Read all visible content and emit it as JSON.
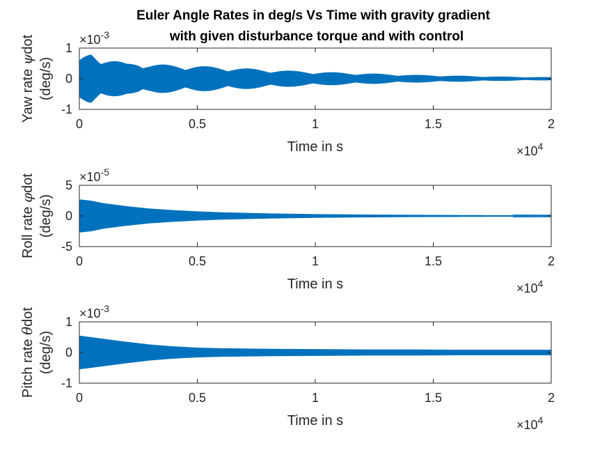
{
  "figure": {
    "title_line1": "Euler Angle Rates in deg/s Vs Time with gravity gradient",
    "title_line2": "with given disturbance torque and with control"
  },
  "colors": {
    "series": "#0072BD",
    "axes": "#262626"
  },
  "chart_data": [
    {
      "type": "line",
      "ylabel_line1": "Yaw rate ",
      "ylabel_symbol": "ψ",
      "ylabel_suffix": "dot",
      "ylabel_line2": "(deg/s)",
      "xlabel": "Time in s",
      "xlim": [
        0,
        20000
      ],
      "ylim": [
        -0.001,
        0.001
      ],
      "xticks": [
        "0",
        "0.5",
        "1",
        "1.5",
        "2"
      ],
      "yticks": [
        "-1",
        "0",
        "1"
      ],
      "x_multiplier": "×10",
      "x_exponent": "4",
      "y_multiplier": "×10",
      "y_exponent": "-3",
      "envelope": {
        "t": [
          0,
          500,
          1000,
          1500,
          2000,
          2500,
          3000,
          4000,
          5000,
          6000,
          7000,
          8000,
          9000,
          10000,
          12000,
          14000,
          16000,
          18000,
          20000
        ],
        "amp": [
          0.0006,
          0.0009,
          0.0007,
          0.0006,
          0.0005,
          0.00055,
          0.00048,
          0.00045,
          0.00042,
          0.00038,
          0.00034,
          0.0003,
          0.00026,
          0.00023,
          0.00018,
          0.00013,
          0.0001,
          7e-05,
          5e-05
        ],
        "beat_period": 1800,
        "beat_depth": 0.7
      }
    },
    {
      "type": "line",
      "ylabel_line1": "Roll rate ",
      "ylabel_symbol": "φ",
      "ylabel_suffix": "dot",
      "ylabel_line2": "(deg/s)",
      "xlabel": "Time in s",
      "xlim": [
        0,
        20000
      ],
      "ylim": [
        -5e-05,
        5e-05
      ],
      "xticks": [
        "0",
        "0.5",
        "1",
        "1.5",
        "2"
      ],
      "yticks": [
        "-5",
        "0",
        "5"
      ],
      "x_multiplier": "×10",
      "x_exponent": "4",
      "y_multiplier": "×10",
      "y_exponent": "-5",
      "envelope": {
        "t": [
          0,
          500,
          1000,
          2000,
          3000,
          4000,
          5000,
          6000,
          8000,
          10000,
          12000,
          14000,
          16000,
          18000,
          20000
        ],
        "amp": [
          2.7e-05,
          2.5e-05,
          2.1e-05,
          1.6e-05,
          1.2e-05,
          9.5e-06,
          7.5e-06,
          6e-06,
          4.2e-06,
          3e-06,
          2.3e-06,
          1.8e-06,
          1.4e-06,
          1.1e-06,
          9e-07
        ],
        "beat_period": 0,
        "beat_depth": 0
      }
    },
    {
      "type": "line",
      "ylabel_line1": "Pitch rate ",
      "ylabel_symbol": "θ",
      "ylabel_suffix": "dot",
      "ylabel_line2": "(deg/s)",
      "xlabel": "Time in s",
      "xlim": [
        0,
        20000
      ],
      "ylim": [
        -0.001,
        0.001
      ],
      "xticks": [
        "0",
        "0.5",
        "1",
        "1.5",
        "2"
      ],
      "yticks": [
        "-1",
        "0",
        "1"
      ],
      "x_multiplier": "×10",
      "x_exponent": "4",
      "y_multiplier": "×10",
      "y_exponent": "-3",
      "envelope": {
        "t": [
          0,
          500,
          1000,
          2000,
          3000,
          4000,
          5000,
          6000,
          8000,
          10000,
          12000,
          14000,
          16000,
          18000,
          20000
        ],
        "amp": [
          0.00055,
          0.0005,
          0.00045,
          0.00035,
          0.00026,
          0.0002,
          0.00016,
          0.00014,
          0.00012,
          0.00011,
          0.0001,
          0.0001,
          9e-05,
          9e-05,
          9e-05
        ],
        "beat_period": 0,
        "beat_depth": 0
      }
    }
  ]
}
